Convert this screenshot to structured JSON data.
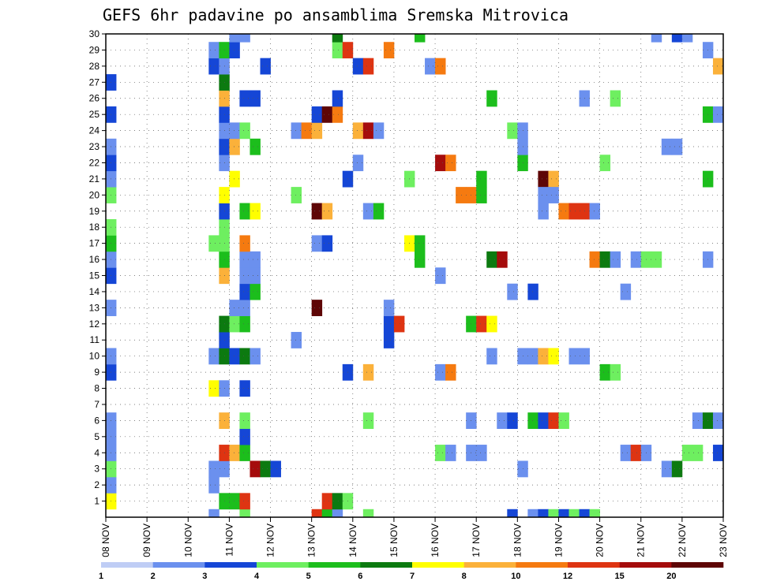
{
  "chart_data": {
    "type": "heatmap",
    "title": "GEFS 6hr padavine po ansamblima Sremska Mitrovica",
    "x_tick_labels": [
      "08 NOV",
      "09 NOV",
      "10 NOV",
      "11 NOV",
      "12 NOV",
      "13 NOV",
      "14 NOV",
      "15 NOV",
      "16 NOV",
      "17 NOV",
      "18 NOV",
      "19 NOV",
      "20 NOV",
      "21 NOV",
      "22 NOV",
      "23 NOV"
    ],
    "y_tick_labels": [
      "1",
      "2",
      "3",
      "4",
      "5",
      "6",
      "7",
      "8",
      "9",
      "10",
      "11",
      "12",
      "13",
      "14",
      "15",
      "16",
      "17",
      "18",
      "19",
      "20",
      "21",
      "22",
      "23",
      "24",
      "25",
      "26",
      "27",
      "28",
      "29",
      "30"
    ],
    "xlim": [
      "2024-11-08 00:00",
      "2024-11-23 00:00"
    ],
    "ylim": [
      0,
      30
    ],
    "time_step_hours": 6,
    "grid": true,
    "legend": {
      "placement": "bottom",
      "boundaries": [
        "1",
        "2",
        "3",
        "4",
        "5",
        "6",
        "7",
        "8",
        "10",
        "12",
        "15",
        "20"
      ],
      "colors": [
        "#bfcdf5",
        "#6b90ee",
        "#1546d6",
        "#6eef60",
        "#1cbe1c",
        "#0c7a10",
        "#ffff00",
        "#fbb13a",
        "#f57a10",
        "#de3412",
        "#a50c0c",
        "#5e0606"
      ]
    },
    "cells": [
      {
        "t": "2024-11-08 00:00",
        "m": 1,
        "c": 6
      },
      {
        "t": "2024-11-08 00:00",
        "m": 2,
        "c": 1
      },
      {
        "t": "2024-11-08 00:00",
        "m": 3,
        "c": 3
      },
      {
        "t": "2024-11-08 00:00",
        "m": 4,
        "c": 1
      },
      {
        "t": "2024-11-08 00:00",
        "m": 5,
        "c": 1
      },
      {
        "t": "2024-11-08 00:00",
        "m": 6,
        "c": 1
      },
      {
        "t": "2024-11-08 00:00",
        "m": 9,
        "c": 2
      },
      {
        "t": "2024-11-08 00:00",
        "m": 10,
        "c": 1
      },
      {
        "t": "2024-11-08 00:00",
        "m": 13,
        "c": 1
      },
      {
        "t": "2024-11-08 00:00",
        "m": 15,
        "c": 2
      },
      {
        "t": "2024-11-08 00:00",
        "m": 16,
        "c": 1
      },
      {
        "t": "2024-11-08 00:00",
        "m": 17,
        "c": 4
      },
      {
        "t": "2024-11-08 00:00",
        "m": 18,
        "c": 3
      },
      {
        "t": "2024-11-08 00:00",
        "m": 20,
        "c": 3
      },
      {
        "t": "2024-11-08 00:00",
        "m": 21,
        "c": 1
      },
      {
        "t": "2024-11-08 00:00",
        "m": 22,
        "c": 2
      },
      {
        "t": "2024-11-08 00:00",
        "m": 23,
        "c": 1
      },
      {
        "t": "2024-11-08 00:00",
        "m": 25,
        "c": 2
      },
      {
        "t": "2024-11-08 00:00",
        "m": 27,
        "c": 2
      },
      {
        "t": "2024-11-10 12:00",
        "m": 0,
        "c": 1
      },
      {
        "t": "2024-11-10 12:00",
        "m": 2,
        "c": 1
      },
      {
        "t": "2024-11-10 12:00",
        "m": 3,
        "c": 1
      },
      {
        "t": "2024-11-10 12:00",
        "m": 8,
        "c": 6
      },
      {
        "t": "2024-11-10 12:00",
        "m": 10,
        "c": 1
      },
      {
        "t": "2024-11-10 12:00",
        "m": 17,
        "c": 3
      },
      {
        "t": "2024-11-10 12:00",
        "m": 28,
        "c": 2
      },
      {
        "t": "2024-11-10 12:00",
        "m": 29,
        "c": 1
      },
      {
        "t": "2024-11-10 18:00",
        "m": 1,
        "c": 4
      },
      {
        "t": "2024-11-10 18:00",
        "m": 3,
        "c": 1
      },
      {
        "t": "2024-11-10 18:00",
        "m": 4,
        "c": 9
      },
      {
        "t": "2024-11-10 18:00",
        "m": 6,
        "c": 7
      },
      {
        "t": "2024-11-10 18:00",
        "m": 8,
        "c": 1
      },
      {
        "t": "2024-11-10 18:00",
        "m": 10,
        "c": 5
      },
      {
        "t": "2024-11-10 18:00",
        "m": 11,
        "c": 2
      },
      {
        "t": "2024-11-10 18:00",
        "m": 12,
        "c": 5
      },
      {
        "t": "2024-11-10 18:00",
        "m": 15,
        "c": 7
      },
      {
        "t": "2024-11-10 18:00",
        "m": 16,
        "c": 4
      },
      {
        "t": "2024-11-10 18:00",
        "m": 17,
        "c": 3
      },
      {
        "t": "2024-11-10 18:00",
        "m": 18,
        "c": 3
      },
      {
        "t": "2024-11-10 18:00",
        "m": 19,
        "c": 2
      },
      {
        "t": "2024-11-10 18:00",
        "m": 20,
        "c": 6
      },
      {
        "t": "2024-11-10 18:00",
        "m": 22,
        "c": 1
      },
      {
        "t": "2024-11-10 18:00",
        "m": 23,
        "c": 2
      },
      {
        "t": "2024-11-10 18:00",
        "m": 24,
        "c": 1
      },
      {
        "t": "2024-11-10 18:00",
        "m": 25,
        "c": 2
      },
      {
        "t": "2024-11-10 18:00",
        "m": 26,
        "c": 7
      },
      {
        "t": "2024-11-10 18:00",
        "m": 27,
        "c": 5
      },
      {
        "t": "2024-11-10 18:00",
        "m": 28,
        "c": 1
      },
      {
        "t": "2024-11-10 18:00",
        "m": 29,
        "c": 4
      },
      {
        "t": "2024-11-11 00:00",
        "m": 1,
        "c": 4
      },
      {
        "t": "2024-11-11 00:00",
        "m": 4,
        "c": 7
      },
      {
        "t": "2024-11-11 00:00",
        "m": 10,
        "c": 2
      },
      {
        "t": "2024-11-11 00:00",
        "m": 12,
        "c": 3
      },
      {
        "t": "2024-11-11 00:00",
        "m": 13,
        "c": 1
      },
      {
        "t": "2024-11-11 00:00",
        "m": 21,
        "c": 6
      },
      {
        "t": "2024-11-11 00:00",
        "m": 23,
        "c": 7
      },
      {
        "t": "2024-11-11 00:00",
        "m": 24,
        "c": 1
      },
      {
        "t": "2024-11-11 00:00",
        "m": 29,
        "c": 2
      },
      {
        "t": "2024-11-11 00:00",
        "m": 30,
        "c": 1
      },
      {
        "t": "2024-11-11 06:00",
        "m": 0,
        "c": 3
      },
      {
        "t": "2024-11-11 06:00",
        "m": 1,
        "c": 9
      },
      {
        "t": "2024-11-11 06:00",
        "m": 4,
        "c": 4
      },
      {
        "t": "2024-11-11 06:00",
        "m": 5,
        "c": 2
      },
      {
        "t": "2024-11-11 06:00",
        "m": 6,
        "c": 3
      },
      {
        "t": "2024-11-11 06:00",
        "m": 8,
        "c": 2
      },
      {
        "t": "2024-11-11 06:00",
        "m": 10,
        "c": 5
      },
      {
        "t": "2024-11-11 06:00",
        "m": 12,
        "c": 4
      },
      {
        "t": "2024-11-11 06:00",
        "m": 13,
        "c": 1
      },
      {
        "t": "2024-11-11 06:00",
        "m": 14,
        "c": 2
      },
      {
        "t": "2024-11-11 06:00",
        "m": 15,
        "c": 1
      },
      {
        "t": "2024-11-11 06:00",
        "m": 16,
        "c": 1
      },
      {
        "t": "2024-11-11 06:00",
        "m": 17,
        "c": 8
      },
      {
        "t": "2024-11-11 06:00",
        "m": 19,
        "c": 4
      },
      {
        "t": "2024-11-11 06:00",
        "m": 24,
        "c": 3
      },
      {
        "t": "2024-11-11 06:00",
        "m": 26,
        "c": 2
      },
      {
        "t": "2024-11-11 06:00",
        "m": 30,
        "c": 1
      },
      {
        "t": "2024-11-11 12:00",
        "m": 3,
        "c": 10
      },
      {
        "t": "2024-11-11 12:00",
        "m": 10,
        "c": 1
      },
      {
        "t": "2024-11-11 12:00",
        "m": 14,
        "c": 4
      },
      {
        "t": "2024-11-11 12:00",
        "m": 15,
        "c": 1
      },
      {
        "t": "2024-11-11 12:00",
        "m": 16,
        "c": 1
      },
      {
        "t": "2024-11-11 12:00",
        "m": 19,
        "c": 6
      },
      {
        "t": "2024-11-11 12:00",
        "m": 23,
        "c": 4
      },
      {
        "t": "2024-11-11 12:00",
        "m": 26,
        "c": 2
      },
      {
        "t": "2024-11-11 18:00",
        "m": 3,
        "c": 5
      },
      {
        "t": "2024-11-11 18:00",
        "m": 28,
        "c": 2
      },
      {
        "t": "2024-11-12 00:00",
        "m": 3,
        "c": 2
      },
      {
        "t": "2024-11-12 12:00",
        "m": 11,
        "c": 1
      },
      {
        "t": "2024-11-12 12:00",
        "m": 20,
        "c": 3
      },
      {
        "t": "2024-11-12 12:00",
        "m": 24,
        "c": 1
      },
      {
        "t": "2024-11-12 18:00",
        "m": 24,
        "c": 8
      },
      {
        "t": "2024-11-13 00:00",
        "m": 0,
        "c": 9
      },
      {
        "t": "2024-11-13 00:00",
        "m": 13,
        "c": 11
      },
      {
        "t": "2024-11-13 00:00",
        "m": 17,
        "c": 1
      },
      {
        "t": "2024-11-13 00:00",
        "m": 19,
        "c": 11
      },
      {
        "t": "2024-11-13 00:00",
        "m": 24,
        "c": 7
      },
      {
        "t": "2024-11-13 00:00",
        "m": 25,
        "c": 2
      },
      {
        "t": "2024-11-13 06:00",
        "m": 0,
        "c": 4
      },
      {
        "t": "2024-11-13 06:00",
        "m": 1,
        "c": 9
      },
      {
        "t": "2024-11-13 06:00",
        "m": 17,
        "c": 2
      },
      {
        "t": "2024-11-13 06:00",
        "m": 19,
        "c": 7
      },
      {
        "t": "2024-11-13 06:00",
        "m": 25,
        "c": 11
      },
      {
        "t": "2024-11-13 12:00",
        "m": 0,
        "c": 1
      },
      {
        "t": "2024-11-13 12:00",
        "m": 1,
        "c": 5
      },
      {
        "t": "2024-11-13 12:00",
        "m": 25,
        "c": 8
      },
      {
        "t": "2024-11-13 12:00",
        "m": 26,
        "c": 2
      },
      {
        "t": "2024-11-13 12:00",
        "m": 29,
        "c": 3
      },
      {
        "t": "2024-11-13 12:00",
        "m": 30,
        "c": 5
      },
      {
        "t": "2024-11-13 18:00",
        "m": 1,
        "c": 3
      },
      {
        "t": "2024-11-13 18:00",
        "m": 9,
        "c": 2
      },
      {
        "t": "2024-11-13 18:00",
        "m": 21,
        "c": 2
      },
      {
        "t": "2024-11-13 18:00",
        "m": 29,
        "c": 9
      },
      {
        "t": "2024-11-14 00:00",
        "m": 22,
        "c": 1
      },
      {
        "t": "2024-11-14 00:00",
        "m": 24,
        "c": 7
      },
      {
        "t": "2024-11-14 00:00",
        "m": 28,
        "c": 2
      },
      {
        "t": "2024-11-14 06:00",
        "m": 0,
        "c": 3
      },
      {
        "t": "2024-11-14 06:00",
        "m": 6,
        "c": 3
      },
      {
        "t": "2024-11-14 06:00",
        "m": 9,
        "c": 7
      },
      {
        "t": "2024-11-14 06:00",
        "m": 19,
        "c": 1
      },
      {
        "t": "2024-11-14 06:00",
        "m": 24,
        "c": 10
      },
      {
        "t": "2024-11-14 06:00",
        "m": 28,
        "c": 9
      },
      {
        "t": "2024-11-14 12:00",
        "m": 19,
        "c": 4
      },
      {
        "t": "2024-11-14 12:00",
        "m": 24,
        "c": 1
      },
      {
        "t": "2024-11-14 18:00",
        "m": 11,
        "c": 2
      },
      {
        "t": "2024-11-14 18:00",
        "m": 12,
        "c": 2
      },
      {
        "t": "2024-11-14 18:00",
        "m": 13,
        "c": 1
      },
      {
        "t": "2024-11-14 18:00",
        "m": 29,
        "c": 8
      },
      {
        "t": "2024-11-15 00:00",
        "m": 12,
        "c": 9
      },
      {
        "t": "2024-11-15 06:00",
        "m": 17,
        "c": 6
      },
      {
        "t": "2024-11-15 06:00",
        "m": 21,
        "c": 3
      },
      {
        "t": "2024-11-15 12:00",
        "m": 16,
        "c": 4
      },
      {
        "t": "2024-11-15 12:00",
        "m": 17,
        "c": 4
      },
      {
        "t": "2024-11-15 12:00",
        "m": 30,
        "c": 4
      },
      {
        "t": "2024-11-15 18:00",
        "m": 28,
        "c": 1
      },
      {
        "t": "2024-11-16 00:00",
        "m": 4,
        "c": 3
      },
      {
        "t": "2024-11-16 00:00",
        "m": 9,
        "c": 1
      },
      {
        "t": "2024-11-16 00:00",
        "m": 15,
        "c": 1
      },
      {
        "t": "2024-11-16 00:00",
        "m": 22,
        "c": 10
      },
      {
        "t": "2024-11-16 00:00",
        "m": 28,
        "c": 8
      },
      {
        "t": "2024-11-16 06:00",
        "m": 4,
        "c": 1
      },
      {
        "t": "2024-11-16 06:00",
        "m": 9,
        "c": 8
      },
      {
        "t": "2024-11-16 06:00",
        "m": 22,
        "c": 8
      },
      {
        "t": "2024-11-16 12:00",
        "m": 20,
        "c": 8
      },
      {
        "t": "2024-11-16 18:00",
        "m": 4,
        "c": 1
      },
      {
        "t": "2024-11-16 18:00",
        "m": 6,
        "c": 1
      },
      {
        "t": "2024-11-16 18:00",
        "m": 12,
        "c": 4
      },
      {
        "t": "2024-11-16 18:00",
        "m": 20,
        "c": 8
      },
      {
        "t": "2024-11-17 00:00",
        "m": 4,
        "c": 1
      },
      {
        "t": "2024-11-17 00:00",
        "m": 12,
        "c": 9
      },
      {
        "t": "2024-11-17 00:00",
        "m": 20,
        "c": 4
      },
      {
        "t": "2024-11-17 00:00",
        "m": 21,
        "c": 4
      },
      {
        "t": "2024-11-17 06:00",
        "m": 10,
        "c": 1
      },
      {
        "t": "2024-11-17 06:00",
        "m": 12,
        "c": 6
      },
      {
        "t": "2024-11-17 06:00",
        "m": 16,
        "c": 5
      },
      {
        "t": "2024-11-17 06:00",
        "m": 26,
        "c": 4
      },
      {
        "t": "2024-11-17 12:00",
        "m": 6,
        "c": 1
      },
      {
        "t": "2024-11-17 12:00",
        "m": 16,
        "c": 10
      },
      {
        "t": "2024-11-17 18:00",
        "m": 0,
        "c": 2
      },
      {
        "t": "2024-11-17 18:00",
        "m": 6,
        "c": 2
      },
      {
        "t": "2024-11-17 18:00",
        "m": 14,
        "c": 1
      },
      {
        "t": "2024-11-17 18:00",
        "m": 24,
        "c": 3
      },
      {
        "t": "2024-11-18 00:00",
        "m": 3,
        "c": 1
      },
      {
        "t": "2024-11-18 00:00",
        "m": 10,
        "c": 1
      },
      {
        "t": "2024-11-18 00:00",
        "m": 22,
        "c": 4
      },
      {
        "t": "2024-11-18 00:00",
        "m": 23,
        "c": 1
      },
      {
        "t": "2024-11-18 00:00",
        "m": 24,
        "c": 1
      },
      {
        "t": "2024-11-18 06:00",
        "m": 0,
        "c": 1
      },
      {
        "t": "2024-11-18 06:00",
        "m": 6,
        "c": 4
      },
      {
        "t": "2024-11-18 06:00",
        "m": 10,
        "c": 1
      },
      {
        "t": "2024-11-18 06:00",
        "m": 14,
        "c": 2
      },
      {
        "t": "2024-11-18 12:00",
        "m": 0,
        "c": 2
      },
      {
        "t": "2024-11-18 12:00",
        "m": 6,
        "c": 2
      },
      {
        "t": "2024-11-18 12:00",
        "m": 10,
        "c": 7
      },
      {
        "t": "2024-11-18 12:00",
        "m": 19,
        "c": 1
      },
      {
        "t": "2024-11-18 12:00",
        "m": 21,
        "c": 11
      },
      {
        "t": "2024-11-18 12:00",
        "m": 20,
        "c": 1
      },
      {
        "t": "2024-11-18 18:00",
        "m": 0,
        "c": 3
      },
      {
        "t": "2024-11-18 18:00",
        "m": 6,
        "c": 9
      },
      {
        "t": "2024-11-18 18:00",
        "m": 10,
        "c": 6
      },
      {
        "t": "2024-11-18 18:00",
        "m": 21,
        "c": 7
      },
      {
        "t": "2024-11-18 18:00",
        "m": 20,
        "c": 1
      },
      {
        "t": "2024-11-19 00:00",
        "m": 0,
        "c": 2
      },
      {
        "t": "2024-11-19 00:00",
        "m": 6,
        "c": 3
      },
      {
        "t": "2024-11-19 00:00",
        "m": 19,
        "c": 8
      },
      {
        "t": "2024-11-19 06:00",
        "m": 0,
        "c": 3
      },
      {
        "t": "2024-11-19 06:00",
        "m": 10,
        "c": 1
      },
      {
        "t": "2024-11-19 06:00",
        "m": 19,
        "c": 9
      },
      {
        "t": "2024-11-19 12:00",
        "m": 0,
        "c": 2
      },
      {
        "t": "2024-11-19 12:00",
        "m": 10,
        "c": 1
      },
      {
        "t": "2024-11-19 12:00",
        "m": 19,
        "c": 9
      },
      {
        "t": "2024-11-19 12:00",
        "m": 26,
        "c": 1
      },
      {
        "t": "2024-11-19 18:00",
        "m": 0,
        "c": 3
      },
      {
        "t": "2024-11-19 18:00",
        "m": 16,
        "c": 8
      },
      {
        "t": "2024-11-19 18:00",
        "m": 19,
        "c": 1
      },
      {
        "t": "2024-11-20 00:00",
        "m": 9,
        "c": 4
      },
      {
        "t": "2024-11-20 00:00",
        "m": 16,
        "c": 5
      },
      {
        "t": "2024-11-20 00:00",
        "m": 22,
        "c": 3
      },
      {
        "t": "2024-11-20 06:00",
        "m": 9,
        "c": 3
      },
      {
        "t": "2024-11-20 06:00",
        "m": 16,
        "c": 1
      },
      {
        "t": "2024-11-20 06:00",
        "m": 26,
        "c": 3
      },
      {
        "t": "2024-11-20 12:00",
        "m": 4,
        "c": 1
      },
      {
        "t": "2024-11-20 12:00",
        "m": 14,
        "c": 1
      },
      {
        "t": "2024-11-20 18:00",
        "m": 4,
        "c": 9
      },
      {
        "t": "2024-11-20 18:00",
        "m": 16,
        "c": 1
      },
      {
        "t": "2024-11-21 00:00",
        "m": 4,
        "c": 1
      },
      {
        "t": "2024-11-21 00:00",
        "m": 16,
        "c": 3
      },
      {
        "t": "2024-11-21 06:00",
        "m": 16,
        "c": 3
      },
      {
        "t": "2024-11-21 06:00",
        "m": 30,
        "c": 1
      },
      {
        "t": "2024-11-21 12:00",
        "m": 3,
        "c": 1
      },
      {
        "t": "2024-11-21 12:00",
        "m": 23,
        "c": 1
      },
      {
        "t": "2024-11-21 18:00",
        "m": 3,
        "c": 5
      },
      {
        "t": "2024-11-21 18:00",
        "m": 23,
        "c": 1
      },
      {
        "t": "2024-11-21 18:00",
        "m": 30,
        "c": 2
      },
      {
        "t": "2024-11-22 00:00",
        "m": 4,
        "c": 3
      },
      {
        "t": "2024-11-22 00:00",
        "m": 30,
        "c": 1
      },
      {
        "t": "2024-11-22 06:00",
        "m": 4,
        "c": 3
      },
      {
        "t": "2024-11-22 06:00",
        "m": 6,
        "c": 1
      },
      {
        "t": "2024-11-22 12:00",
        "m": 6,
        "c": 5
      },
      {
        "t": "2024-11-22 12:00",
        "m": 16,
        "c": 1
      },
      {
        "t": "2024-11-22 12:00",
        "m": 21,
        "c": 4
      },
      {
        "t": "2024-11-22 12:00",
        "m": 25,
        "c": 4
      },
      {
        "t": "2024-11-22 12:00",
        "m": 29,
        "c": 1
      },
      {
        "t": "2024-11-22 18:00",
        "m": 4,
        "c": 2
      },
      {
        "t": "2024-11-22 18:00",
        "m": 6,
        "c": 1
      },
      {
        "t": "2024-11-22 18:00",
        "m": 25,
        "c": 1
      },
      {
        "t": "2024-11-22 18:00",
        "m": 28,
        "c": 7
      }
    ]
  }
}
